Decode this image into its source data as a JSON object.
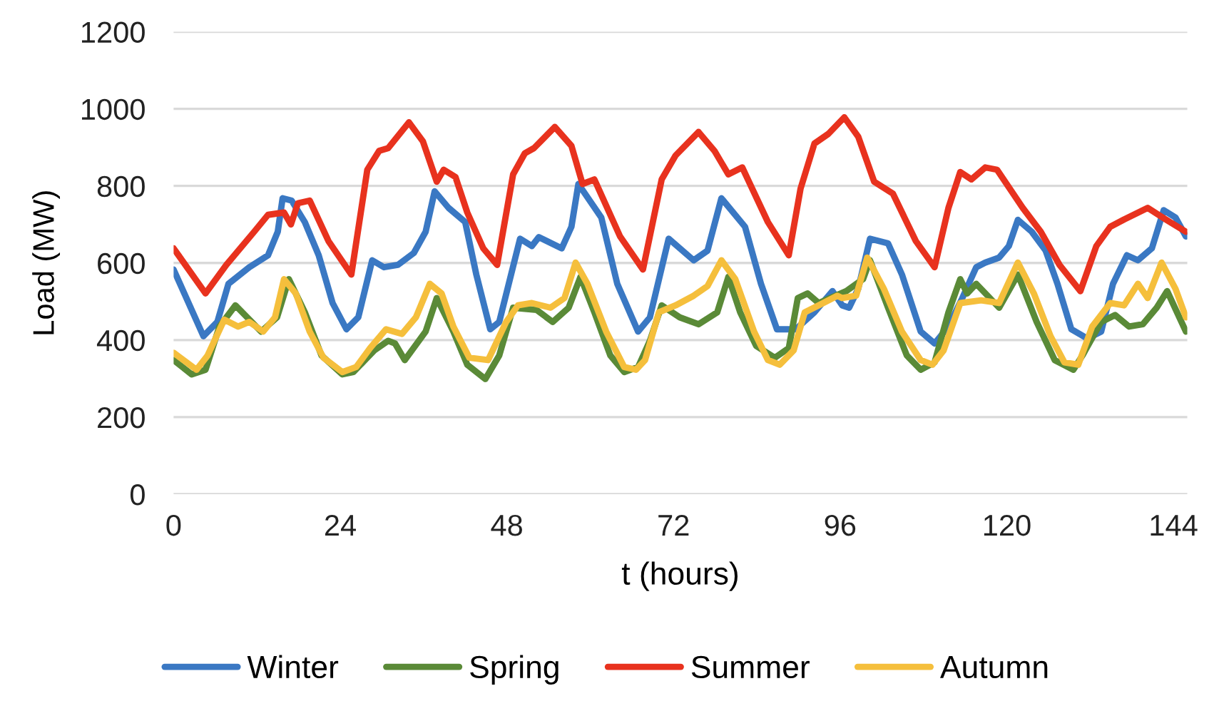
{
  "chart_data": {
    "type": "line",
    "xlabel": "t (hours)",
    "ylabel": "Load (MW)",
    "xlim": [
      0,
      146
    ],
    "xticks": [
      0,
      24,
      48,
      72,
      96,
      120,
      144
    ],
    "ylim": [
      0,
      1200
    ],
    "yticks": [
      0,
      200,
      400,
      600,
      800,
      1000,
      1200
    ],
    "grid": "y",
    "legend": "bottom",
    "marker": "none",
    "line_style": "solid",
    "series": [
      {
        "name": "Winter",
        "color": "#3a78c3",
        "x": [
          0,
          4.3,
          6.3,
          7.9,
          10.9,
          13.6,
          15,
          15.7,
          17,
          18.9,
          20.9,
          22.9,
          24.9,
          26.6,
          28.6,
          30.3,
          32.3,
          34.6,
          36.3,
          37.6,
          39.6,
          42,
          43.6,
          45.6,
          46.9,
          49.9,
          51.6,
          52.6,
          55.9,
          57.3,
          58.3,
          61.6,
          63.9,
          66.9,
          68.6,
          71.3,
          74.9,
          76.9,
          78.9,
          82.3,
          84.6,
          86.9,
          89.6,
          92.3,
          94.9,
          96.3,
          97.3,
          98.6,
          100.3,
          102.9,
          104.9,
          107.6,
          109.6,
          111.6,
          113.6,
          115.6,
          116.9,
          118.9,
          120.3,
          121.6,
          123.6,
          125.6,
          127.3,
          129.3,
          131.6,
          133.6,
          135.3,
          137.3,
          138.9,
          140.9,
          142.6,
          144.3,
          145.8
        ],
        "values": [
          583,
          410,
          447,
          546,
          589,
          620,
          681,
          768,
          762,
          706,
          620,
          496,
          428,
          459,
          607,
          589,
          595,
          626,
          681,
          786,
          743,
          706,
          570,
          428,
          447,
          663,
          644,
          667,
          638,
          694,
          805,
          718,
          546,
          422,
          459,
          663,
          607,
          632,
          768,
          694,
          546,
          428,
          428,
          472,
          527,
          490,
          484,
          533,
          663,
          651,
          570,
          422,
          391,
          435,
          509,
          589,
          601,
          614,
          644,
          712,
          681,
          632,
          546,
          428,
          404,
          422,
          546,
          620,
          607,
          638,
          737,
          718,
          669
        ]
      },
      {
        "name": "Spring",
        "color": "#5a8a37",
        "x": [
          0,
          2.6,
          4.6,
          6.6,
          8.9,
          12.6,
          14.9,
          16.6,
          18.9,
          21.3,
          24.3,
          25.9,
          28.9,
          30.9,
          31.9,
          33.3,
          36.3,
          37.9,
          40.3,
          42.3,
          44.9,
          46.9,
          48.9,
          52.3,
          54.6,
          56.9,
          58.6,
          60.6,
          62.9,
          64.9,
          66.9,
          68.6,
          70.3,
          72.9,
          75.6,
          78.3,
          79.9,
          81.6,
          83.9,
          86.6,
          88.6,
          89.9,
          91.3,
          92.9,
          95.3,
          96.9,
          99.3,
          100.3,
          102.9,
          105.6,
          107.6,
          109.6,
          111.6,
          113.3,
          114.3,
          115.6,
          118.9,
          121.6,
          124.3,
          126.9,
          129.6,
          130.9,
          133.6,
          135.6,
          137.6,
          139.6,
          141.6,
          143.1,
          145.8
        ],
        "values": [
          348,
          311,
          323,
          435,
          490,
          422,
          459,
          558,
          472,
          360,
          311,
          317,
          373,
          398,
          391,
          348,
          422,
          509,
          422,
          336,
          299,
          360,
          484,
          478,
          447,
          484,
          564,
          472,
          360,
          317,
          330,
          398,
          490,
          459,
          441,
          472,
          564,
          472,
          385,
          354,
          379,
          509,
          521,
          496,
          515,
          527,
          558,
          607,
          484,
          360,
          323,
          342,
          472,
          558,
          521,
          546,
          484,
          570,
          447,
          348,
          323,
          360,
          447,
          465,
          435,
          441,
          484,
          527,
          422
        ]
      },
      {
        "name": "Summer",
        "color": "#e8321e",
        "x": [
          0,
          4.6,
          7.6,
          11.6,
          13.6,
          15.9,
          16.9,
          17.9,
          19.6,
          22.3,
          25.6,
          27.9,
          29.6,
          30.9,
          33.9,
          35.9,
          37.9,
          38.9,
          40.6,
          42.3,
          44.6,
          46.6,
          48.9,
          50.6,
          51.9,
          54.9,
          57.3,
          58.9,
          60.6,
          64.3,
          67.6,
          70.3,
          72.3,
          75.6,
          77.9,
          79.9,
          81.9,
          85.6,
          88.6,
          90.3,
          92.3,
          94.3,
          96.6,
          98.6,
          100.9,
          103.6,
          106.9,
          109.6,
          111.6,
          113.3,
          114.9,
          116.9,
          118.6,
          122.3,
          124.9,
          127.6,
          130.6,
          132.9,
          134.9,
          136.9,
          140.3,
          142.9,
          145.8
        ],
        "values": [
          638,
          521,
          595,
          681,
          725,
          731,
          700,
          755,
          762,
          657,
          570,
          842,
          891,
          898,
          965,
          916,
          811,
          842,
          823,
          731,
          638,
          595,
          830,
          885,
          898,
          953,
          904,
          805,
          817,
          669,
          583,
          817,
          879,
          940,
          891,
          830,
          848,
          706,
          620,
          793,
          910,
          935,
          978,
          928,
          811,
          780,
          657,
          589,
          743,
          836,
          817,
          848,
          842,
          743,
          681,
          595,
          527,
          644,
          694,
          713,
          743,
          713,
          681
        ]
      },
      {
        "name": "Autumn",
        "color": "#f5bf3c",
        "x": [
          0,
          3.3,
          4.9,
          7.3,
          9.3,
          10.9,
          12.9,
          14.6,
          15.9,
          17.6,
          19.6,
          21.6,
          24.3,
          26.3,
          28.3,
          30.6,
          32.9,
          34.9,
          36.9,
          38.6,
          40.3,
          42.6,
          45.3,
          47.9,
          49.6,
          51.6,
          54.3,
          56.3,
          57.9,
          59.6,
          62.3,
          64.9,
          66.6,
          67.9,
          69.9,
          72.3,
          74.9,
          76.9,
          78.9,
          80.9,
          83.6,
          85.6,
          87.3,
          89.3,
          90.9,
          92.9,
          95.6,
          96.3,
          98.3,
          99.9,
          102.3,
          104.9,
          107.6,
          109.3,
          110.9,
          113.3,
          116.3,
          118.9,
          121.6,
          123.9,
          126.3,
          128.3,
          130.3,
          132.3,
          134.9,
          136.9,
          138.9,
          140.3,
          142.3,
          144.3,
          145.8
        ],
        "values": [
          367,
          323,
          360,
          453,
          435,
          447,
          422,
          459,
          558,
          521,
          422,
          354,
          317,
          330,
          379,
          428,
          416,
          459,
          546,
          521,
          435,
          354,
          348,
          447,
          490,
          496,
          484,
          509,
          601,
          546,
          422,
          330,
          323,
          348,
          472,
          490,
          515,
          540,
          607,
          558,
          422,
          348,
          336,
          373,
          472,
          490,
          515,
          509,
          515,
          614,
          533,
          422,
          348,
          336,
          373,
          496,
          503,
          496,
          601,
          521,
          410,
          342,
          336,
          435,
          496,
          490,
          546,
          509,
          601,
          533,
          459
        ]
      }
    ]
  }
}
